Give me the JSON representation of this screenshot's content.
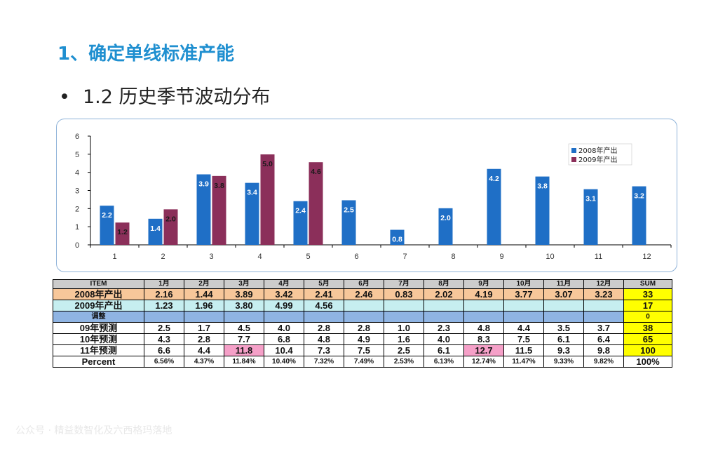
{
  "slide": {
    "heading": "1、确定单线标准产能",
    "bullet": "•",
    "subheading": "1.2 历史季节波动分布",
    "watermark": "公众号 · 精益数智化及六西格玛落地"
  },
  "chart_data": {
    "type": "bar",
    "categories": [
      "1",
      "2",
      "3",
      "4",
      "5",
      "6",
      "7",
      "8",
      "9",
      "10",
      "11",
      "12"
    ],
    "series": [
      {
        "name": "2008年产出",
        "color": "#1f6fc6",
        "values": [
          2.16,
          1.44,
          3.89,
          3.42,
          2.41,
          2.46,
          0.83,
          2.02,
          4.19,
          3.77,
          3.07,
          3.23
        ],
        "labels": [
          "2.2",
          "1.4",
          "3.9",
          "3.4",
          "2.4",
          "2.5",
          "0.8",
          "2.0",
          "4.2",
          "3.8",
          "3.1",
          "3.2"
        ]
      },
      {
        "name": "2009年产出",
        "color": "#8b2f5a",
        "values": [
          1.23,
          1.96,
          3.8,
          4.99,
          4.56,
          null,
          null,
          null,
          null,
          null,
          null,
          null
        ],
        "labels": [
          "1.2",
          "2.0",
          "3.8",
          "5.0",
          "4.6",
          "",
          "",
          "",
          "",
          "",
          "",
          ""
        ]
      }
    ],
    "yticks": [
      "0",
      "1",
      "2",
      "3",
      "4",
      "5",
      "6"
    ],
    "ylim": [
      0,
      6
    ],
    "legend": "top-right"
  },
  "table": {
    "headers": [
      "ITEM",
      "1月",
      "2月",
      "3月",
      "4月",
      "5月",
      "6月",
      "7月",
      "8月",
      "9月",
      "10月",
      "11月",
      "12月",
      "SUM"
    ],
    "rows": [
      {
        "label": "2008年产出",
        "values": [
          "2.16",
          "1.44",
          "3.89",
          "3.42",
          "2.41",
          "2.46",
          "0.83",
          "2.02",
          "4.19",
          "3.77",
          "3.07",
          "3.23"
        ],
        "sum": "33"
      },
      {
        "label": "2009年产出",
        "values": [
          "1.23",
          "1.96",
          "3.80",
          "4.99",
          "4.56",
          "",
          "",
          "",
          "",
          "",
          "",
          ""
        ],
        "sum": "17"
      },
      {
        "label": "调整",
        "values": [
          "",
          "",
          "",
          "",
          "",
          "",
          "",
          "",
          "",
          "",
          "",
          ""
        ],
        "sum": "0"
      },
      {
        "label": "09年预测",
        "values": [
          "2.5",
          "1.7",
          "4.5",
          "4.0",
          "2.8",
          "2.8",
          "1.0",
          "2.3",
          "4.8",
          "4.4",
          "3.5",
          "3.7"
        ],
        "sum": "38"
      },
      {
        "label": "10年预测",
        "values": [
          "4.3",
          "2.8",
          "7.7",
          "6.8",
          "4.8",
          "4.9",
          "1.6",
          "4.0",
          "8.3",
          "7.5",
          "6.1",
          "6.4"
        ],
        "sum": "65"
      },
      {
        "label": "11年预测",
        "values": [
          "6.6",
          "4.4",
          "11.8",
          "10.4",
          "7.3",
          "7.5",
          "2.5",
          "6.1",
          "12.7",
          "11.5",
          "9.3",
          "9.8"
        ],
        "sum": "100"
      },
      {
        "label": "Percent",
        "values": [
          "6.56%",
          "4.37%",
          "11.84%",
          "10.40%",
          "7.32%",
          "7.49%",
          "2.53%",
          "6.13%",
          "12.74%",
          "11.47%",
          "9.33%",
          "9.82%"
        ],
        "sum": "100%"
      }
    ]
  }
}
